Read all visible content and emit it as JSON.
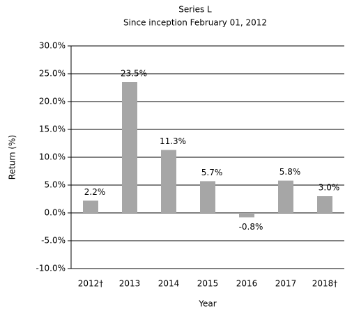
{
  "chart_data": {
    "type": "bar",
    "title": "Series L",
    "subtitle": "Since inception February 01, 2012",
    "xlabel": "Year",
    "ylabel": "Return (%)",
    "categories": [
      "2012†",
      "2013",
      "2014",
      "2015",
      "2016",
      "2017",
      "2018†"
    ],
    "values": [
      2.2,
      23.5,
      11.3,
      5.7,
      -0.8,
      5.8,
      3.0
    ],
    "value_labels": [
      "2.2%",
      "23.5%",
      "11.3%",
      "5.7%",
      "-0.8%",
      "5.8%",
      "3.0%"
    ],
    "color": "#a6a6a6",
    "ylim": [
      -10,
      30
    ],
    "yticks": [
      {
        "value": -10,
        "label": "-10.0%"
      },
      {
        "value": -5,
        "label": "-5.0%"
      },
      {
        "value": 0,
        "label": "0.0%"
      },
      {
        "value": 5,
        "label": "5.0%"
      },
      {
        "value": 10,
        "label": "10.0%"
      },
      {
        "value": 15,
        "label": "15.0%"
      },
      {
        "value": 20,
        "label": "20.0%"
      },
      {
        "value": 25,
        "label": "25.0%"
      },
      {
        "value": 30,
        "label": "30.0%"
      }
    ],
    "grid": true
  }
}
